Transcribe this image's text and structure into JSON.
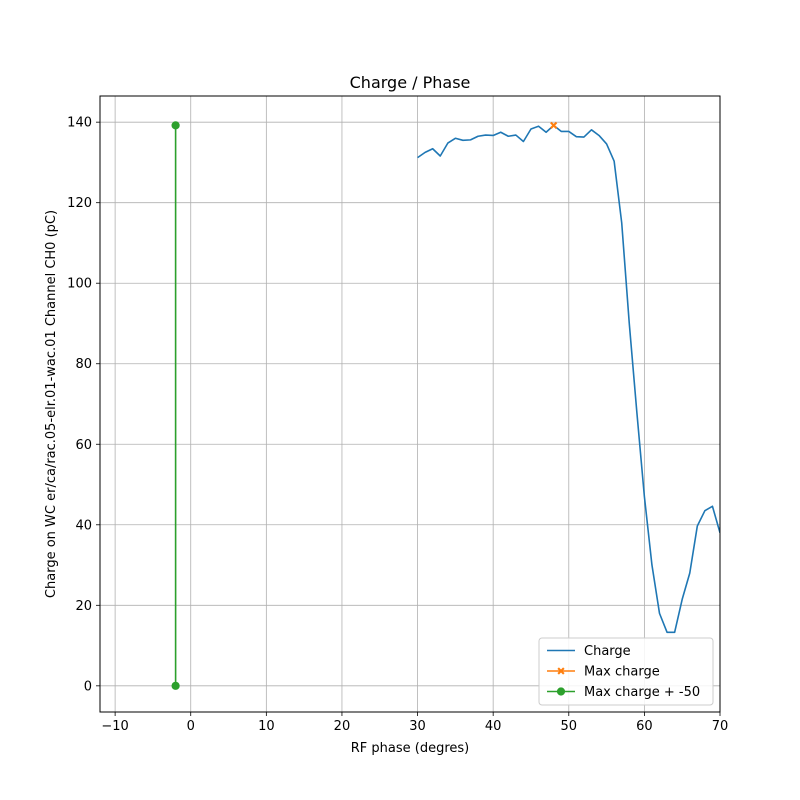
{
  "chart_data": {
    "type": "line",
    "title": "Charge / Phase",
    "xlabel": "RF phase (degres)",
    "ylabel": "Charge on WC er/ca/rac.05-elr.01-wac.01 Channel CH0 (pC)",
    "xlim": [
      -12,
      70
    ],
    "ylim": [
      -6.5,
      146.5
    ],
    "xticks": [
      -10,
      0,
      10,
      20,
      30,
      40,
      50,
      60,
      70
    ],
    "yticks": [
      0,
      20,
      40,
      60,
      80,
      100,
      120,
      140
    ],
    "grid": true,
    "legend_position": "lower-right",
    "series": [
      {
        "name": "Charge",
        "color": "#1f77b4",
        "marker": "none",
        "x": [
          30,
          31,
          32,
          33,
          34,
          35,
          36,
          37,
          38,
          39,
          40,
          41,
          42,
          43,
          44,
          45,
          46,
          47,
          48,
          49,
          50,
          51,
          52,
          53,
          54,
          55,
          56,
          57,
          58,
          59,
          60,
          61,
          62,
          63,
          64,
          65,
          66,
          67,
          68,
          69,
          70
        ],
        "y": [
          131.2,
          132.5,
          133.4,
          131.6,
          134.8,
          136.0,
          135.5,
          135.6,
          136.5,
          136.8,
          136.7,
          137.5,
          136.5,
          136.8,
          135.2,
          138.3,
          139.0,
          137.5,
          139.2,
          137.7,
          137.7,
          136.4,
          136.3,
          138.1,
          136.7,
          134.6,
          130.3,
          115.0,
          90.0,
          68.0,
          47.0,
          30.0,
          18.0,
          13.3,
          13.3,
          21.5,
          28.0,
          39.7,
          43.5,
          44.6,
          38.0
        ]
      },
      {
        "name": "Max charge",
        "color": "#ff7f0e",
        "marker": "x",
        "x": [
          48
        ],
        "y": [
          139.2
        ]
      },
      {
        "name": "Max charge + -50",
        "color": "#2ca02c",
        "marker": "circle",
        "x": [
          -2,
          -2
        ],
        "y": [
          0,
          139.2
        ]
      }
    ]
  }
}
